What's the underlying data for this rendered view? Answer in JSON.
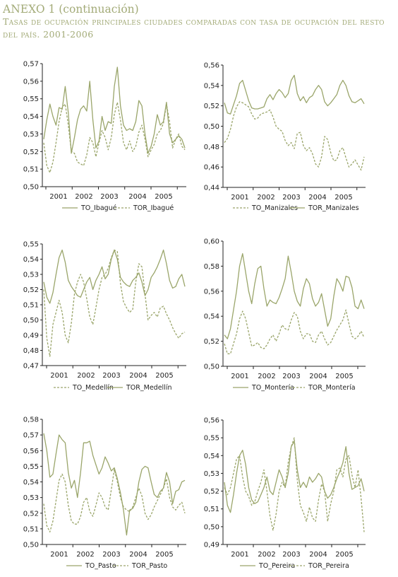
{
  "page": {
    "title": "ANEXO 1 (continuación)",
    "subtitle": "Tasas de ocupación principales ciudades comparadas con tasa de ocupación del resto del país. 2001-2006"
  },
  "chart_data": [
    {
      "type": "line",
      "title": "",
      "xlabel": "",
      "ylabel": "",
      "x_ticks": [
        "2001",
        "2002",
        "2003",
        "2004",
        "2005"
      ],
      "ylim": [
        0.5,
        0.57
      ],
      "y_ticks": [
        "0,50",
        "0,51",
        "0,52",
        "0,53",
        "0,54",
        "0,55",
        "0,56",
        "0,57"
      ],
      "legend_position": "bottom",
      "series": [
        {
          "name": "TO_Ibagué",
          "style": "solid",
          "values": [
            0.527,
            0.538,
            0.547,
            0.54,
            0.535,
            0.545,
            0.544,
            0.557,
            0.542,
            0.519,
            0.528,
            0.538,
            0.544,
            0.546,
            0.543,
            0.56,
            0.538,
            0.522,
            0.526,
            0.54,
            0.532,
            0.537,
            0.536,
            0.557,
            0.568,
            0.546,
            0.535,
            0.532,
            0.533,
            0.532,
            0.537,
            0.549,
            0.546,
            0.53,
            0.519,
            0.523,
            0.53,
            0.541,
            0.535,
            0.537,
            0.548,
            0.53,
            0.525,
            0.527,
            0.529,
            0.527,
            0.522
          ]
        },
        {
          "name": "TOR_Ibagué",
          "style": "dashed",
          "values": [
            0.525,
            0.512,
            0.508,
            0.514,
            0.525,
            0.537,
            0.545,
            0.547,
            0.535,
            0.52,
            0.519,
            0.514,
            0.513,
            0.512,
            0.518,
            0.528,
            0.525,
            0.517,
            0.525,
            0.532,
            0.528,
            0.521,
            0.528,
            0.541,
            0.548,
            0.538,
            0.525,
            0.521,
            0.526,
            0.52,
            0.523,
            0.531,
            0.535,
            0.527,
            0.517,
            0.521,
            0.524,
            0.53,
            0.532,
            0.536,
            0.547,
            0.537,
            0.522,
            0.527,
            0.53,
            0.523,
            0.521
          ]
        }
      ]
    },
    {
      "type": "line",
      "title": "",
      "xlabel": "",
      "ylabel": "",
      "x_ticks": [
        "2001",
        "2002",
        "2003",
        "2004",
        "2005"
      ],
      "ylim": [
        0.44,
        0.56
      ],
      "y_ticks": [
        "0,44",
        "0,46",
        "0,48",
        "0,50",
        "0,52",
        "0,54",
        "0,56"
      ],
      "legend_position": "bottom",
      "series": [
        {
          "name": "TO_Manizales",
          "style": "dashed",
          "values": [
            0.484,
            0.488,
            0.497,
            0.51,
            0.519,
            0.524,
            0.523,
            0.521,
            0.519,
            0.512,
            0.507,
            0.508,
            0.512,
            0.513,
            0.514,
            0.516,
            0.509,
            0.5,
            0.497,
            0.495,
            0.486,
            0.481,
            0.484,
            0.478,
            0.493,
            0.494,
            0.481,
            0.476,
            0.479,
            0.473,
            0.463,
            0.46,
            0.47,
            0.49,
            0.487,
            0.474,
            0.466,
            0.467,
            0.476,
            0.479,
            0.469,
            0.46,
            0.463,
            0.467,
            0.462,
            0.457,
            0.47
          ]
        },
        {
          "name": "TOR_Manizales",
          "style": "solid",
          "values": [
            0.523,
            0.513,
            0.512,
            0.521,
            0.53,
            0.542,
            0.545,
            0.535,
            0.525,
            0.518,
            0.517,
            0.517,
            0.518,
            0.519,
            0.527,
            0.531,
            0.526,
            0.532,
            0.536,
            0.533,
            0.528,
            0.532,
            0.545,
            0.55,
            0.532,
            0.525,
            0.529,
            0.523,
            0.528,
            0.53,
            0.536,
            0.54,
            0.536,
            0.524,
            0.52,
            0.523,
            0.527,
            0.531,
            0.54,
            0.545,
            0.54,
            0.53,
            0.524,
            0.523,
            0.525,
            0.527,
            0.522
          ]
        }
      ]
    },
    {
      "type": "line",
      "title": "",
      "xlabel": "",
      "ylabel": "",
      "x_ticks": [
        "2001",
        "2002",
        "2003",
        "2004",
        "2005"
      ],
      "ylim": [
        0.47,
        0.55
      ],
      "y_ticks": [
        "0,47",
        "0,48",
        "0,49",
        "0,50",
        "0,51",
        "0,52",
        "0,53",
        "0,54",
        "0,55"
      ],
      "legend_position": "bottom",
      "series": [
        {
          "name": "TO_Medellín",
          "style": "dashed",
          "values": [
            0.52,
            0.488,
            0.476,
            0.497,
            0.505,
            0.513,
            0.505,
            0.49,
            0.485,
            0.498,
            0.517,
            0.525,
            0.53,
            0.525,
            0.514,
            0.502,
            0.497,
            0.508,
            0.52,
            0.528,
            0.53,
            0.534,
            0.541,
            0.546,
            0.545,
            0.524,
            0.512,
            0.508,
            0.505,
            0.507,
            0.525,
            0.537,
            0.535,
            0.517,
            0.5,
            0.503,
            0.505,
            0.502,
            0.508,
            0.509,
            0.504,
            0.5,
            0.495,
            0.491,
            0.488,
            0.491,
            0.492
          ]
        },
        {
          "name": "TOR_Medellín",
          "style": "solid",
          "values": [
            0.525,
            0.515,
            0.511,
            0.518,
            0.53,
            0.541,
            0.546,
            0.538,
            0.526,
            0.522,
            0.519,
            0.516,
            0.515,
            0.52,
            0.525,
            0.528,
            0.52,
            0.526,
            0.53,
            0.535,
            0.527,
            0.53,
            0.54,
            0.546,
            0.54,
            0.528,
            0.525,
            0.523,
            0.522,
            0.526,
            0.528,
            0.531,
            0.525,
            0.516,
            0.52,
            0.528,
            0.531,
            0.535,
            0.54,
            0.546,
            0.537,
            0.526,
            0.521,
            0.522,
            0.527,
            0.53,
            0.522
          ]
        }
      ]
    },
    {
      "type": "line",
      "title": "",
      "xlabel": "",
      "ylabel": "",
      "x_ticks": [
        "2001",
        "2002",
        "2003",
        "2004",
        "2005"
      ],
      "ylim": [
        0.5,
        0.6
      ],
      "y_ticks": [
        "0,50",
        "0,52",
        "0,54",
        "0,56",
        "0,58",
        "0,60"
      ],
      "legend_position": "bottom",
      "series": [
        {
          "name": "TO_Montería",
          "style": "solid",
          "values": [
            0.525,
            0.522,
            0.53,
            0.545,
            0.56,
            0.58,
            0.59,
            0.575,
            0.56,
            0.55,
            0.566,
            0.578,
            0.58,
            0.562,
            0.548,
            0.553,
            0.551,
            0.55,
            0.555,
            0.562,
            0.57,
            0.588,
            0.575,
            0.56,
            0.552,
            0.548,
            0.562,
            0.57,
            0.566,
            0.554,
            0.548,
            0.551,
            0.558,
            0.545,
            0.532,
            0.538,
            0.556,
            0.57,
            0.566,
            0.56,
            0.572,
            0.571,
            0.563,
            0.548,
            0.546,
            0.553,
            0.546
          ]
        },
        {
          "name": "TOR_Montería",
          "style": "dashed",
          "values": [
            0.518,
            0.51,
            0.51,
            0.518,
            0.526,
            0.538,
            0.544,
            0.538,
            0.527,
            0.516,
            0.517,
            0.519,
            0.515,
            0.514,
            0.517,
            0.522,
            0.525,
            0.52,
            0.526,
            0.533,
            0.53,
            0.529,
            0.537,
            0.543,
            0.54,
            0.528,
            0.522,
            0.526,
            0.526,
            0.52,
            0.519,
            0.525,
            0.528,
            0.522,
            0.517,
            0.519,
            0.524,
            0.529,
            0.533,
            0.537,
            0.545,
            0.534,
            0.524,
            0.522,
            0.524,
            0.528,
            0.523
          ]
        }
      ]
    },
    {
      "type": "line",
      "title": "",
      "xlabel": "",
      "ylabel": "",
      "x_ticks": [
        "2001",
        "2002",
        "2003",
        "2004",
        "2005"
      ],
      "ylim": [
        0.5,
        0.58
      ],
      "y_ticks": [
        "0,50",
        "0,51",
        "0,52",
        "0,53",
        "0,54",
        "0,55",
        "0,56",
        "0,57",
        "0,58"
      ],
      "legend_position": "bottom",
      "series": [
        {
          "name": "TO_Pasto",
          "style": "solid",
          "values": [
            0.571,
            0.56,
            0.543,
            0.545,
            0.558,
            0.57,
            0.567,
            0.565,
            0.546,
            0.536,
            0.541,
            0.53,
            0.546,
            0.565,
            0.565,
            0.566,
            0.557,
            0.551,
            0.545,
            0.549,
            0.556,
            0.552,
            0.547,
            0.549,
            0.542,
            0.533,
            0.522,
            0.506,
            0.522,
            0.523,
            0.527,
            0.54,
            0.548,
            0.55,
            0.549,
            0.54,
            0.532,
            0.53,
            0.534,
            0.536,
            0.546,
            0.54,
            0.526,
            0.534,
            0.535,
            0.54,
            0.541
          ]
        },
        {
          "name": "TOR_Pasto",
          "style": "dashed",
          "values": [
            0.526,
            0.512,
            0.508,
            0.515,
            0.528,
            0.541,
            0.545,
            0.54,
            0.525,
            0.515,
            0.513,
            0.513,
            0.518,
            0.527,
            0.53,
            0.521,
            0.518,
            0.525,
            0.533,
            0.53,
            0.524,
            0.522,
            0.535,
            0.548,
            0.54,
            0.53,
            0.524,
            0.522,
            0.521,
            0.524,
            0.53,
            0.536,
            0.531,
            0.52,
            0.516,
            0.519,
            0.524,
            0.528,
            0.532,
            0.536,
            0.542,
            0.53,
            0.524,
            0.522,
            0.525,
            0.527,
            0.52
          ]
        }
      ]
    },
    {
      "type": "line",
      "title": "",
      "xlabel": "",
      "ylabel": "",
      "x_ticks": [
        "2001",
        "2002",
        "2003",
        "2004",
        "2005"
      ],
      "ylim": [
        0.49,
        0.56
      ],
      "y_ticks": [
        "0,49",
        "0,50",
        "0,51",
        "0,52",
        "0,53",
        "0,54",
        "0,55",
        "0,56"
      ],
      "legend_position": "bottom",
      "series": [
        {
          "name": "TO_Pereira",
          "style": "solid",
          "values": [
            0.525,
            0.512,
            0.508,
            0.518,
            0.53,
            0.54,
            0.543,
            0.535,
            0.522,
            0.515,
            0.513,
            0.514,
            0.518,
            0.522,
            0.528,
            0.52,
            0.518,
            0.525,
            0.532,
            0.528,
            0.522,
            0.53,
            0.545,
            0.548,
            0.532,
            0.522,
            0.525,
            0.522,
            0.528,
            0.525,
            0.527,
            0.53,
            0.528,
            0.52,
            0.516,
            0.518,
            0.522,
            0.527,
            0.531,
            0.536,
            0.545,
            0.53,
            0.521,
            0.522,
            0.523,
            0.527,
            0.52
          ]
        },
        {
          "name": "TOR_Pereira",
          "style": "dashed",
          "values": [
            0.522,
            0.518,
            0.522,
            0.53,
            0.538,
            0.54,
            0.528,
            0.52,
            0.517,
            0.512,
            0.514,
            0.52,
            0.525,
            0.532,
            0.52,
            0.506,
            0.498,
            0.507,
            0.52,
            0.525,
            0.522,
            0.536,
            0.545,
            0.55,
            0.526,
            0.512,
            0.508,
            0.503,
            0.511,
            0.505,
            0.503,
            0.515,
            0.524,
            0.52,
            0.503,
            0.513,
            0.52,
            0.532,
            0.533,
            0.528,
            0.538,
            0.54,
            0.529,
            0.522,
            0.532,
            0.516,
            0.497
          ]
        }
      ]
    }
  ]
}
